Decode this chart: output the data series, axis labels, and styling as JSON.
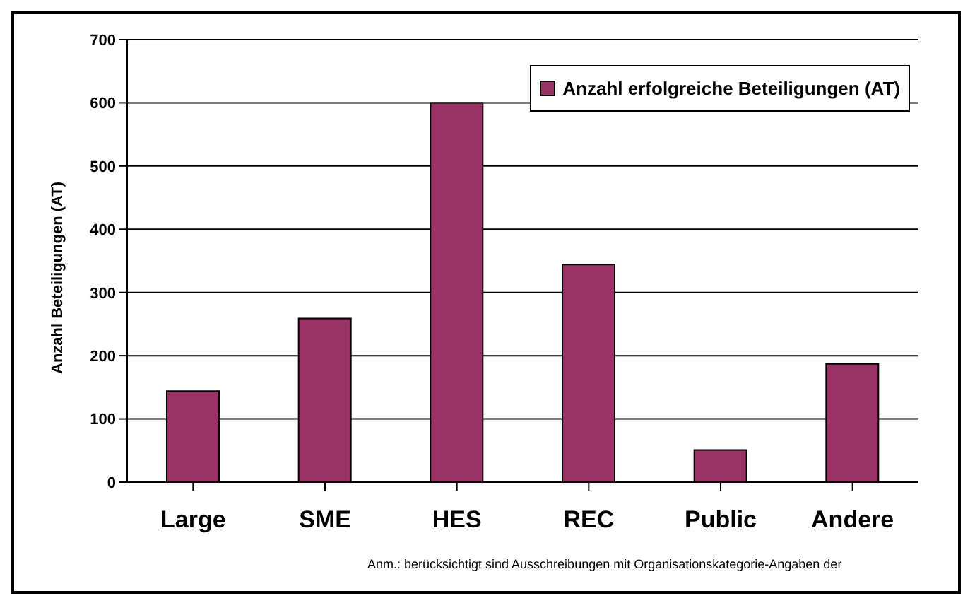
{
  "chart_data": {
    "type": "bar",
    "ylabel": "Anzahl Beteiligungen (AT)",
    "categories": [
      "Large",
      "SME",
      "HES",
      "REC",
      "Public",
      "Andere"
    ],
    "series": [
      {
        "name": "Anzahl erfolgreiche Beteiligungen (AT)",
        "color": "#993366",
        "values": [
          144,
          259,
          600,
          344,
          51,
          187
        ]
      }
    ],
    "ylim": [
      0,
      700
    ],
    "yticks": [
      0,
      100,
      200,
      300,
      400,
      500,
      600,
      700
    ],
    "grid": "y",
    "legend": "top right",
    "annotations": [
      "Anm.: berücksichtigt sind Ausschreibungen mit Organisationskategorie-Angaben der"
    ]
  }
}
